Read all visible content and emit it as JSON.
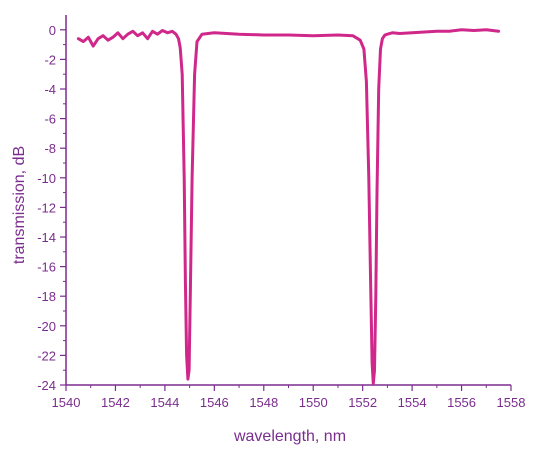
{
  "chart_data": {
    "type": "line",
    "title": "",
    "xlabel": "wavelength, nm",
    "ylabel": "transmission, dB",
    "xlim": [
      1540,
      1558
    ],
    "ylim": [
      -24,
      1
    ],
    "x_ticks": [
      1540,
      1542,
      1544,
      1546,
      1548,
      1550,
      1552,
      1554,
      1556,
      1558
    ],
    "y_ticks": [
      0,
      -2,
      -4,
      -6,
      -8,
      -10,
      -12,
      -14,
      -16,
      -18,
      -20,
      -22,
      -24
    ],
    "x_tick_labels": [
      "1540",
      "1542",
      "1544",
      "1546",
      "1548",
      "1550",
      "1552",
      "1554",
      "1556",
      "1558"
    ],
    "y_tick_labels": [
      "0",
      "-2",
      "-4",
      "-6",
      "-8",
      "-10",
      "-12",
      "-14",
      "-16",
      "-18",
      "-20",
      "-22",
      "-24"
    ],
    "grid": false,
    "colors": {
      "axis": "#7b2d8e",
      "series": "#d0288a"
    },
    "series": [
      {
        "x": [
          1540.5,
          1540.7,
          1540.9,
          1541.1,
          1541.3,
          1541.5,
          1541.7,
          1541.9,
          1542.1,
          1542.3,
          1542.5,
          1542.7,
          1542.9,
          1543.1,
          1543.3,
          1543.5,
          1543.7,
          1543.9,
          1544.1,
          1544.3,
          1544.45,
          1544.55,
          1544.62,
          1544.7,
          1544.78,
          1544.83,
          1544.88,
          1544.93,
          1544.98,
          1545.03,
          1545.1,
          1545.2,
          1545.3,
          1545.5,
          1546.0,
          1547.0,
          1548.0,
          1549.0,
          1550.0,
          1551.0,
          1551.6,
          1551.9,
          1552.05,
          1552.15,
          1552.25,
          1552.32,
          1552.38,
          1552.43,
          1552.48,
          1552.53,
          1552.58,
          1552.65,
          1552.72,
          1552.8,
          1552.9,
          1553.0,
          1553.2,
          1553.5,
          1554.0,
          1554.5,
          1555.0,
          1555.5,
          1556.0,
          1556.5,
          1557.0,
          1557.5
        ],
        "y": [
          -0.6,
          -0.8,
          -0.5,
          -1.1,
          -0.6,
          -0.4,
          -0.7,
          -0.5,
          -0.2,
          -0.6,
          -0.3,
          -0.1,
          -0.4,
          -0.2,
          -0.6,
          -0.1,
          -0.3,
          -0.05,
          -0.2,
          -0.1,
          -0.3,
          -0.6,
          -1.2,
          -3.0,
          -10.0,
          -17.0,
          -22.0,
          -23.6,
          -23.0,
          -17.5,
          -10.0,
          -3.0,
          -0.8,
          -0.3,
          -0.2,
          -0.3,
          -0.35,
          -0.35,
          -0.4,
          -0.35,
          -0.4,
          -0.7,
          -1.3,
          -3.5,
          -10.0,
          -17.0,
          -22.5,
          -23.9,
          -23.0,
          -18.0,
          -11.0,
          -4.0,
          -1.3,
          -0.6,
          -0.35,
          -0.3,
          -0.2,
          -0.25,
          -0.2,
          -0.15,
          -0.1,
          -0.1,
          0.0,
          -0.05,
          0.0,
          -0.1
        ]
      }
    ]
  }
}
